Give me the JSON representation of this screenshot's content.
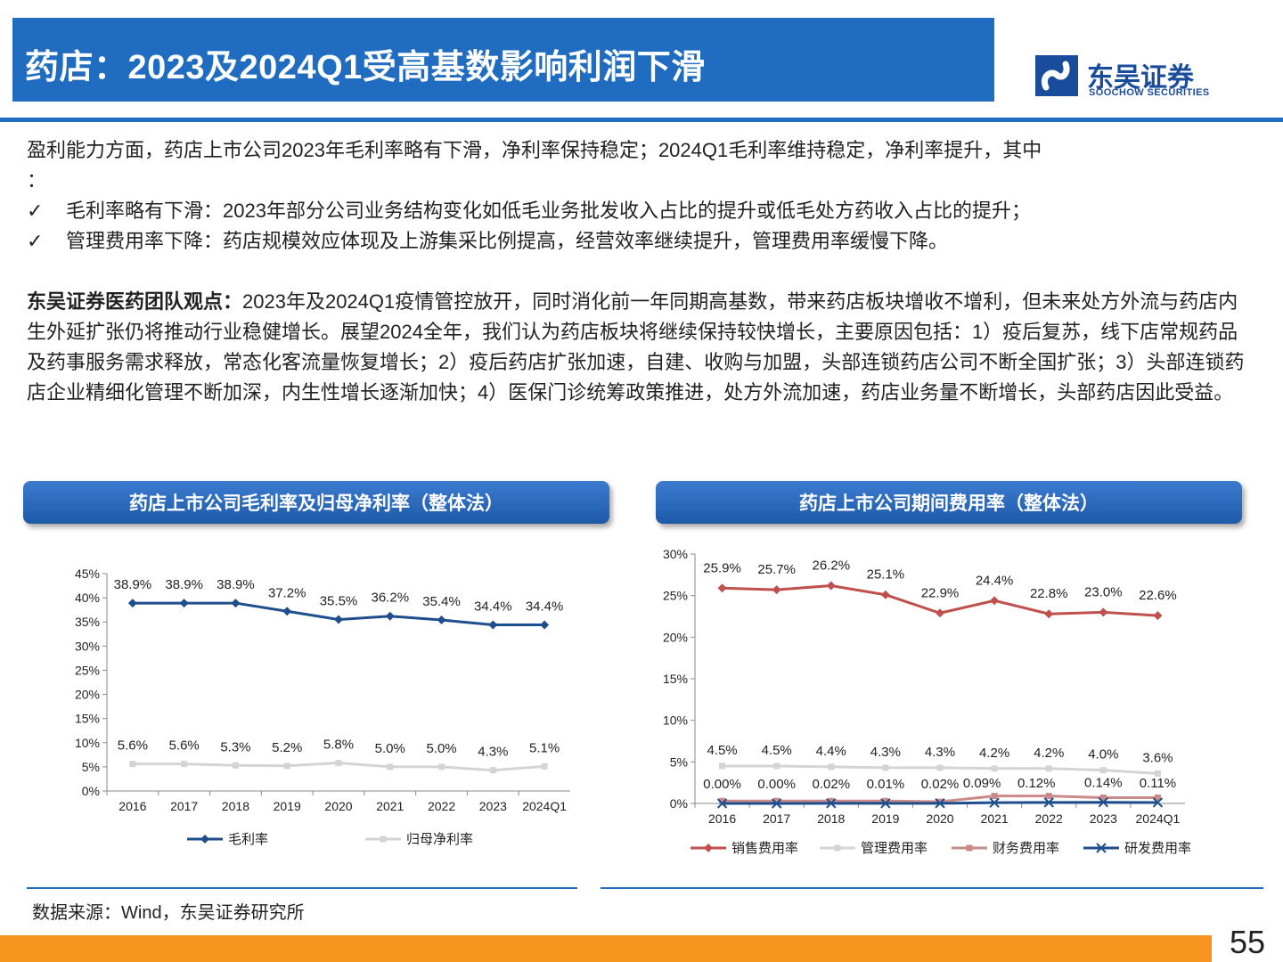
{
  "title": "药店：2023及2024Q1受高基数影响利润下滑",
  "logo": {
    "cn": "东吴证券",
    "en": "SOOCHOW SECURITIES"
  },
  "intro": {
    "line1": "盈利能力方面，药店上市公司2023年毛利率略有下滑，净利率保持稳定；2024Q1毛利率维持稳定，净利率提升，其中",
    "line1b": "：",
    "check_mark": "✓",
    "bullets": [
      "毛利率略有下滑：2023年部分公司业务结构变化如低毛业务批发收入占比的提升或低毛处方药收入占比的提升；",
      "管理费用率下降：药店规模效应体现及上游集采比例提高，经营效率继续提升，管理费用率缓慢下降。"
    ]
  },
  "view": {
    "label": "东吴证券医药团队观点：",
    "text": "2023年及2024Q1疫情管控放开，同时消化前一年同期高基数，带来药店板块增收不增利，但未来处方外流与药店内生外延扩张仍将推动行业稳健增长。展望2024全年，我们认为药店板块将继续保持较快增长，主要原因包括：1）疫后复苏，线下店常规药品及药事服务需求释放，常态化客流量恢复增长；2）疫后药店扩张加速，自建、收购与加盟，头部连锁药店公司不断全国扩张；3）头部连锁药店企业精细化管理不断加深，内生性增长逐渐加快；4）医保门诊统筹政策推进，处方外流加速，药店业务量不断增长，头部药店因此受益。"
  },
  "chart_data": [
    {
      "type": "line",
      "title": "药店上市公司毛利率及归母净利率（整体法）",
      "categories": [
        "2016",
        "2017",
        "2018",
        "2019",
        "2020",
        "2021",
        "2022",
        "2023",
        "2024Q1"
      ],
      "ylim": [
        0,
        45
      ],
      "yticks": [
        "0%",
        "5%",
        "10%",
        "15%",
        "20%",
        "25%",
        "30%",
        "35%",
        "40%",
        "45%"
      ],
      "series": [
        {
          "name": "毛利率",
          "values": [
            38.9,
            38.9,
            38.9,
            37.2,
            35.5,
            36.2,
            35.4,
            34.4,
            34.4
          ],
          "labels": [
            "38.9%",
            "38.9%",
            "38.9%",
            "37.2%",
            "35.5%",
            "36.2%",
            "35.4%",
            "34.4%",
            "34.4%"
          ],
          "color": "#1f4e8c"
        },
        {
          "name": "归母净利率",
          "values": [
            5.6,
            5.6,
            5.3,
            5.2,
            5.8,
            5.0,
            5.0,
            4.3,
            5.1
          ],
          "labels": [
            "5.6%",
            "5.6%",
            "5.3%",
            "5.2%",
            "5.8%",
            "5.0%",
            "5.0%",
            "4.3%",
            "5.1%"
          ],
          "color": "#d4d4d4"
        }
      ],
      "legend": "bottom"
    },
    {
      "type": "line",
      "title": "药店上市公司期间费用率（整体法）",
      "categories": [
        "2016",
        "2017",
        "2018",
        "2019",
        "2020",
        "2021",
        "2022",
        "2023",
        "2024Q1"
      ],
      "ylim": [
        0,
        30
      ],
      "yticks": [
        "0%",
        "5%",
        "10%",
        "15%",
        "20%",
        "25%",
        "30%"
      ],
      "series": [
        {
          "name": "销售费用率",
          "values": [
            25.9,
            25.7,
            26.2,
            25.1,
            22.9,
            24.4,
            22.8,
            23.0,
            22.6
          ],
          "labels": [
            "25.9%",
            "25.7%",
            "26.2%",
            "25.1%",
            "22.9%",
            "24.4%",
            "22.8%",
            "23.0%",
            "22.6%"
          ],
          "color": "#c0504d"
        },
        {
          "name": "管理费用率",
          "values": [
            4.5,
            4.5,
            4.4,
            4.3,
            4.3,
            4.2,
            4.2,
            4.0,
            3.6
          ],
          "labels": [
            "4.5%",
            "4.5%",
            "4.4%",
            "4.3%",
            "4.3%",
            "4.2%",
            "4.2%",
            "4.0%",
            "3.6%"
          ],
          "color": "#d4d4d4"
        },
        {
          "name": "财务费用率",
          "values": [
            0.3,
            0.3,
            0.3,
            0.3,
            0.2,
            0.9,
            0.9,
            0.7,
            0.7
          ],
          "labels": [],
          "color": "#c98a88"
        },
        {
          "name": "研发费用率",
          "values": [
            0.0,
            0.0,
            0.02,
            0.01,
            0.02,
            0.09,
            0.12,
            0.14,
            0.11
          ],
          "labels": [
            "0.00%",
            "0.00%",
            "0.02%",
            "0.01%",
            "0.02%",
            "0.09%",
            "0.12%",
            "0.14%",
            "0.11%"
          ],
          "color": "#1f4e8c"
        }
      ],
      "legend": "bottom"
    }
  ],
  "source": "数据来源：Wind，东吴证券研究所",
  "page_number": "55"
}
